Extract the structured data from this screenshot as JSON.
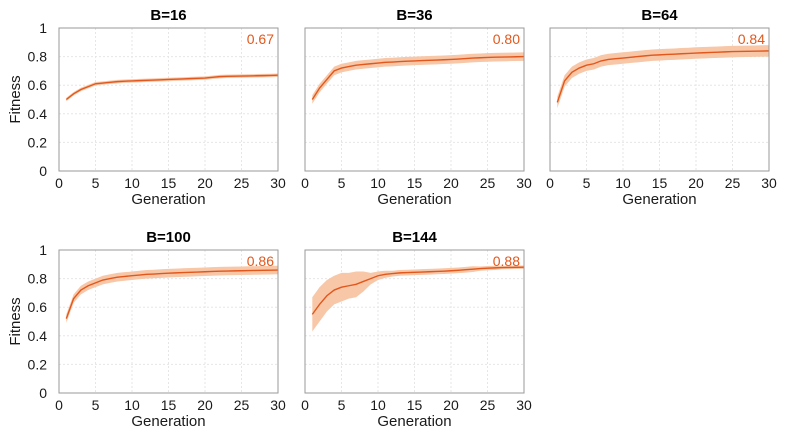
{
  "chart_data": [
    {
      "type": "line",
      "title": "B=16",
      "xlabel": "Generation",
      "ylabel": "Fitness",
      "xlim": [
        0,
        30
      ],
      "ylim": [
        0,
        1
      ],
      "xticks": [
        0,
        5,
        10,
        15,
        20,
        25,
        30
      ],
      "yticks": [
        0,
        0.2,
        0.4,
        0.6,
        0.8,
        1
      ],
      "x": [
        1,
        2,
        3,
        4,
        5,
        6,
        7,
        8,
        9,
        10,
        11,
        12,
        13,
        14,
        15,
        16,
        17,
        18,
        19,
        20,
        21,
        22,
        23,
        24,
        25,
        26,
        27,
        28,
        29,
        30
      ],
      "mean": [
        0.5,
        0.54,
        0.57,
        0.59,
        0.61,
        0.615,
        0.62,
        0.625,
        0.628,
        0.63,
        0.632,
        0.634,
        0.636,
        0.638,
        0.64,
        0.642,
        0.644,
        0.646,
        0.648,
        0.65,
        0.655,
        0.66,
        0.662,
        0.663,
        0.664,
        0.665,
        0.666,
        0.667,
        0.668,
        0.67
      ],
      "band": 0.012,
      "final_value_label": "0.67",
      "grid": true
    },
    {
      "type": "line",
      "title": "B=36",
      "xlabel": "Generation",
      "ylabel": "",
      "xlim": [
        0,
        30
      ],
      "ylim": [
        0,
        1
      ],
      "xticks": [
        0,
        5,
        10,
        15,
        20,
        25,
        30
      ],
      "yticks": [],
      "x": [
        1,
        2,
        3,
        4,
        5,
        6,
        7,
        8,
        9,
        10,
        11,
        12,
        13,
        14,
        15,
        16,
        17,
        18,
        19,
        20,
        21,
        22,
        23,
        24,
        25,
        26,
        27,
        28,
        29,
        30
      ],
      "mean": [
        0.5,
        0.58,
        0.64,
        0.7,
        0.72,
        0.73,
        0.74,
        0.745,
        0.75,
        0.755,
        0.76,
        0.762,
        0.765,
        0.768,
        0.77,
        0.772,
        0.774,
        0.776,
        0.778,
        0.78,
        0.783,
        0.786,
        0.79,
        0.792,
        0.794,
        0.796,
        0.797,
        0.798,
        0.799,
        0.8
      ],
      "band": 0.03,
      "final_value_label": "0.80",
      "grid": true
    },
    {
      "type": "line",
      "title": "B=64",
      "xlabel": "Generation",
      "ylabel": "",
      "xlim": [
        0,
        30
      ],
      "ylim": [
        0,
        1
      ],
      "xticks": [
        0,
        5,
        10,
        15,
        20,
        25,
        30
      ],
      "yticks": [],
      "x": [
        1,
        2,
        3,
        4,
        5,
        6,
        7,
        8,
        9,
        10,
        11,
        12,
        13,
        14,
        15,
        16,
        17,
        18,
        19,
        20,
        21,
        22,
        23,
        24,
        25,
        26,
        27,
        28,
        29,
        30
      ],
      "mean": [
        0.48,
        0.63,
        0.69,
        0.72,
        0.74,
        0.75,
        0.77,
        0.78,
        0.785,
        0.79,
        0.795,
        0.8,
        0.805,
        0.81,
        0.812,
        0.815,
        0.817,
        0.82,
        0.822,
        0.825,
        0.827,
        0.829,
        0.831,
        0.833,
        0.835,
        0.836,
        0.837,
        0.838,
        0.839,
        0.84
      ],
      "band": 0.04,
      "final_value_label": "0.84",
      "grid": true
    },
    {
      "type": "line",
      "title": "B=100",
      "xlabel": "Generation",
      "ylabel": "Fitness",
      "xlim": [
        0,
        30
      ],
      "ylim": [
        0,
        1
      ],
      "xticks": [
        0,
        5,
        10,
        15,
        20,
        25,
        30
      ],
      "yticks": [
        0,
        0.2,
        0.4,
        0.6,
        0.8,
        1
      ],
      "x": [
        1,
        2,
        3,
        4,
        5,
        6,
        7,
        8,
        9,
        10,
        11,
        12,
        13,
        14,
        15,
        16,
        17,
        18,
        19,
        20,
        21,
        22,
        23,
        24,
        25,
        26,
        27,
        28,
        29,
        30
      ],
      "mean": [
        0.52,
        0.66,
        0.72,
        0.75,
        0.77,
        0.79,
        0.8,
        0.81,
        0.815,
        0.82,
        0.825,
        0.83,
        0.832,
        0.835,
        0.838,
        0.84,
        0.842,
        0.844,
        0.846,
        0.848,
        0.85,
        0.852,
        0.853,
        0.854,
        0.855,
        0.856,
        0.857,
        0.858,
        0.859,
        0.86
      ],
      "band": 0.03,
      "final_value_label": "0.86",
      "grid": true
    },
    {
      "type": "line",
      "title": "B=144",
      "xlabel": "Generation",
      "ylabel": "",
      "xlim": [
        0,
        30
      ],
      "ylim": [
        0,
        1
      ],
      "xticks": [
        0,
        5,
        10,
        15,
        20,
        25,
        30
      ],
      "yticks": [],
      "x": [
        1,
        2,
        3,
        4,
        5,
        6,
        7,
        8,
        9,
        10,
        11,
        12,
        13,
        14,
        15,
        16,
        17,
        18,
        19,
        20,
        21,
        22,
        23,
        24,
        25,
        26,
        27,
        28,
        29,
        30
      ],
      "mean": [
        0.55,
        0.62,
        0.68,
        0.72,
        0.74,
        0.75,
        0.76,
        0.78,
        0.8,
        0.82,
        0.83,
        0.835,
        0.84,
        0.842,
        0.844,
        0.846,
        0.848,
        0.85,
        0.852,
        0.855,
        0.858,
        0.862,
        0.866,
        0.87,
        0.873,
        0.875,
        0.877,
        0.878,
        0.879,
        0.88
      ],
      "band_widths": [
        0.12,
        0.12,
        0.11,
        0.1,
        0.1,
        0.09,
        0.09,
        0.07,
        0.04,
        0.03,
        0.025,
        0.02,
        0.02,
        0.02,
        0.02,
        0.02,
        0.02,
        0.02,
        0.02,
        0.02,
        0.02,
        0.02,
        0.02,
        0.015,
        0.015,
        0.015,
        0.012,
        0.012,
        0.012,
        0.012
      ],
      "final_value_label": "0.88",
      "grid": true
    }
  ],
  "colors": {
    "line": "#e2571b",
    "band": "#f7c7a8",
    "final_label": "#e2571b"
  }
}
